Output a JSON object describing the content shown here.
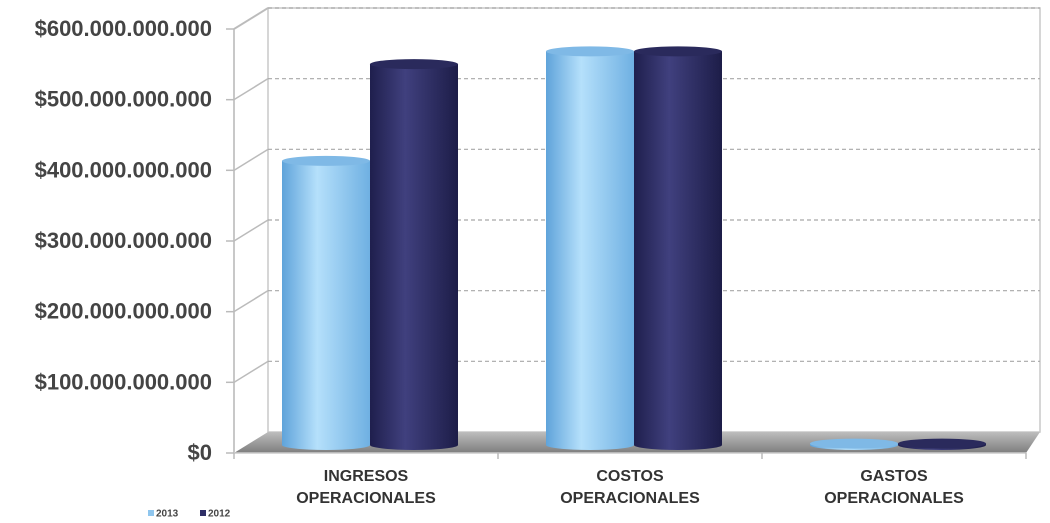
{
  "chart_data": {
    "type": "bar",
    "categories": [
      "INGRESOS OPERACIONALES",
      "COSTOS OPERACIONALES",
      "GASTOS OPERACIONALES"
    ],
    "category_lines": [
      [
        "INGRESOS",
        "OPERACIONALES"
      ],
      [
        "COSTOS",
        "OPERACIONALES"
      ],
      [
        "GASTOS",
        "OPERACIONALES"
      ]
    ],
    "series": [
      {
        "name": "2013",
        "values": [
          402000000000,
          557000000000,
          2000000000
        ],
        "color": "#8fc6ee"
      },
      {
        "name": "2012",
        "values": [
          539000000000,
          557000000000,
          2000000000
        ],
        "color": "#2e2e66"
      }
    ],
    "ylim": [
      0,
      600000000000
    ],
    "yticks": [
      0,
      100000000000,
      200000000000,
      300000000000,
      400000000000,
      500000000000,
      600000000000
    ],
    "ytick_labels": [
      "$0",
      "$100.000.000.000",
      "$200.000.000.000",
      "$300.000.000.000",
      "$400.000.000.000",
      "$500.000.000.000",
      "$600.000.000.000"
    ],
    "grid": true,
    "legend_position": "bottom-left",
    "style": "3d-cylinder"
  }
}
